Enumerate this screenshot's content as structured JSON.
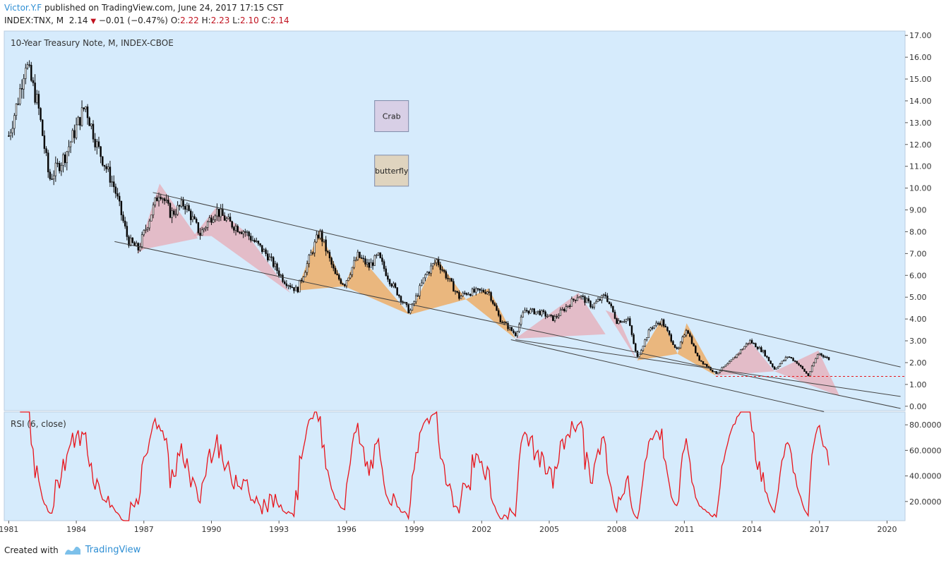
{
  "header": {
    "author": "Victor.Y.F",
    "published_text": "published on TradingView.com, June 24, 2017 17:15 CST",
    "symbol": "INDEX:TNX, M",
    "last": "2.14",
    "change": "−0.01 (−0.47%)",
    "o_label": "O:",
    "o_value": "2.22",
    "h_label": "H:",
    "h_value": "2.23",
    "l_label": "L:",
    "l_value": "2.10",
    "c_label": "C:",
    "c_value": "2.14"
  },
  "footer": {
    "created_with": "Created with",
    "brand": "TradingView"
  },
  "colors": {
    "panel_bg": "#d6ebfc",
    "up": "#ffffff",
    "down": "#000000",
    "rsi": "#e8141b",
    "crab": "#d8cfe6",
    "butterfly": "#dfd4bf",
    "pink_pattern": "#e8a9b4",
    "orange_pattern": "#f0a85a"
  },
  "chart_data": [
    {
      "type": "candlestick",
      "title": "10-Year Treasury Note, M, INDEX-CBOE",
      "x_range": [
        1980.8,
        2020.8
      ],
      "y_range": [
        -0.2,
        17.2
      ],
      "x_ticks": [
        "1981",
        "1984",
        "1987",
        "1990",
        "1993",
        "1996",
        "1999",
        "2002",
        "2005",
        "2008",
        "2011",
        "2014",
        "2017",
        "2020"
      ],
      "y_ticks": [
        "17.00",
        "16.00",
        "15.00",
        "14.00",
        "13.00",
        "12.00",
        "11.00",
        "10.00",
        "9.00",
        "8.00",
        "7.00",
        "6.00",
        "5.00",
        "4.00",
        "3.00",
        "2.00",
        "1.00",
        "0.00"
      ],
      "price_anchors": [
        [
          1981.0,
          12.4
        ],
        [
          1981.4,
          14.0
        ],
        [
          1981.75,
          15.8
        ],
        [
          1982.3,
          13.8
        ],
        [
          1982.8,
          10.4
        ],
        [
          1983.5,
          11.5
        ],
        [
          1984.4,
          13.8
        ],
        [
          1984.9,
          12.0
        ],
        [
          1985.7,
          10.0
        ],
        [
          1986.3,
          7.6
        ],
        [
          1986.75,
          7.2
        ],
        [
          1987.7,
          9.9
        ],
        [
          1988.2,
          8.8
        ],
        [
          1988.8,
          9.3
        ],
        [
          1989.5,
          7.9
        ],
        [
          1990.2,
          9.0
        ],
        [
          1990.8,
          8.4
        ],
        [
          1991.5,
          8.0
        ],
        [
          1992.5,
          6.9
        ],
        [
          1993.2,
          5.8
        ],
        [
          1993.8,
          5.3
        ],
        [
          1994.8,
          8.0
        ],
        [
          1995.5,
          6.0
        ],
        [
          1995.9,
          5.6
        ],
        [
          1996.5,
          6.9
        ],
        [
          1997.0,
          6.4
        ],
        [
          1997.4,
          6.9
        ],
        [
          1997.9,
          5.8
        ],
        [
          1998.8,
          4.3
        ],
        [
          1999.5,
          6.0
        ],
        [
          2000.0,
          6.7
        ],
        [
          2001.0,
          5.0
        ],
        [
          2001.3,
          5.2
        ],
        [
          2002.3,
          5.3
        ],
        [
          2002.8,
          4.0
        ],
        [
          2003.5,
          3.3
        ],
        [
          2003.9,
          4.4
        ],
        [
          2004.6,
          4.3
        ],
        [
          2005.2,
          4.0
        ],
        [
          2006.3,
          5.1
        ],
        [
          2006.9,
          4.6
        ],
        [
          2007.5,
          5.1
        ],
        [
          2008.0,
          3.9
        ],
        [
          2008.5,
          4.0
        ],
        [
          2008.9,
          2.2
        ],
        [
          2009.5,
          3.6
        ],
        [
          2010.0,
          3.9
        ],
        [
          2010.7,
          2.5
        ],
        [
          2011.1,
          3.6
        ],
        [
          2011.6,
          2.2
        ],
        [
          2012.4,
          1.5
        ],
        [
          2013.0,
          2.0
        ],
        [
          2013.9,
          3.0
        ],
        [
          2014.5,
          2.5
        ],
        [
          2015.0,
          1.7
        ],
        [
          2015.6,
          2.3
        ],
        [
          2016.0,
          2.0
        ],
        [
          2016.5,
          1.4
        ],
        [
          2016.95,
          2.45
        ],
        [
          2017.45,
          2.14
        ]
      ],
      "channel_lines": [
        {
          "x1": 1987.4,
          "y1": 9.8,
          "x2": 2020.6,
          "y2": 1.8
        },
        {
          "x1": 1985.7,
          "y1": 7.55,
          "x2": 2020.6,
          "y2": -0.1
        },
        {
          "x1": 2003.5,
          "y1": 3.05,
          "x2": 2020.6,
          "y2": 0.45
        },
        {
          "x1": 2003.3,
          "y1": 3.05,
          "x2": 2017.2,
          "y2": -0.25
        }
      ],
      "support_level": 1.37,
      "patterns": [
        {
          "kind": "pink",
          "points": [
            [
              1986.7,
              7.0
            ],
            [
              1987.7,
              10.2
            ],
            [
              1989.4,
              7.7
            ],
            [
              1987.0,
              7.2
            ]
          ]
        },
        {
          "kind": "pink",
          "points": [
            [
              1989.2,
              7.8
            ],
            [
              1990.2,
              9.1
            ],
            [
              1991.5,
              8.0
            ],
            [
              1993.5,
              5.2
            ],
            [
              1990.0,
              7.8
            ]
          ]
        },
        {
          "kind": "orange",
          "points": [
            [
              1993.8,
              5.3
            ],
            [
              1994.8,
              8.1
            ],
            [
              1995.9,
              5.5
            ]
          ]
        },
        {
          "kind": "orange",
          "points": [
            [
              1995.9,
              5.5
            ],
            [
              1996.5,
              7.0
            ],
            [
              1998.8,
              4.2
            ]
          ]
        },
        {
          "kind": "orange",
          "points": [
            [
              1998.8,
              4.2
            ],
            [
              2000.0,
              6.8
            ],
            [
              2001.3,
              4.9
            ]
          ]
        },
        {
          "kind": "orange",
          "points": [
            [
              2001.3,
              4.9
            ],
            [
              2002.3,
              5.4
            ],
            [
              2003.5,
              3.1
            ]
          ]
        },
        {
          "kind": "pink",
          "points": [
            [
              2003.5,
              3.1
            ],
            [
              2006.3,
              5.2
            ],
            [
              2007.5,
              3.3
            ]
          ]
        },
        {
          "kind": "pink",
          "points": [
            [
              2007.5,
              4.4
            ],
            [
              2008.9,
              2.1
            ],
            [
              2008.0,
              4.2
            ]
          ]
        },
        {
          "kind": "orange",
          "points": [
            [
              2008.9,
              2.1
            ],
            [
              2010.0,
              4.0
            ],
            [
              2010.7,
              2.4
            ]
          ]
        },
        {
          "kind": "orange",
          "points": [
            [
              2010.7,
              2.4
            ],
            [
              2011.1,
              3.8
            ],
            [
              2012.4,
              1.4
            ]
          ]
        },
        {
          "kind": "pink",
          "points": [
            [
              2012.4,
              1.4
            ],
            [
              2013.9,
              3.0
            ],
            [
              2015.0,
              1.6
            ]
          ]
        },
        {
          "kind": "pink",
          "points": [
            [
              2015.0,
              1.6
            ],
            [
              2016.95,
              2.55
            ],
            [
              2017.9,
              0.45
            ]
          ]
        }
      ],
      "annotations": [
        {
          "label": "Crab",
          "x": 1998.0,
          "y": 13.3
        },
        {
          "label": "butterfly",
          "x": 1998.0,
          "y": 10.8
        }
      ]
    },
    {
      "type": "line",
      "title": "RSI (6, close)",
      "y_range": [
        5,
        90
      ],
      "y_ticks": [
        "80.0000",
        "60.0000",
        "40.0000",
        "20.0000"
      ],
      "series": [
        {
          "name": "RSI (6, close)",
          "color": "#e8141b"
        }
      ]
    }
  ]
}
